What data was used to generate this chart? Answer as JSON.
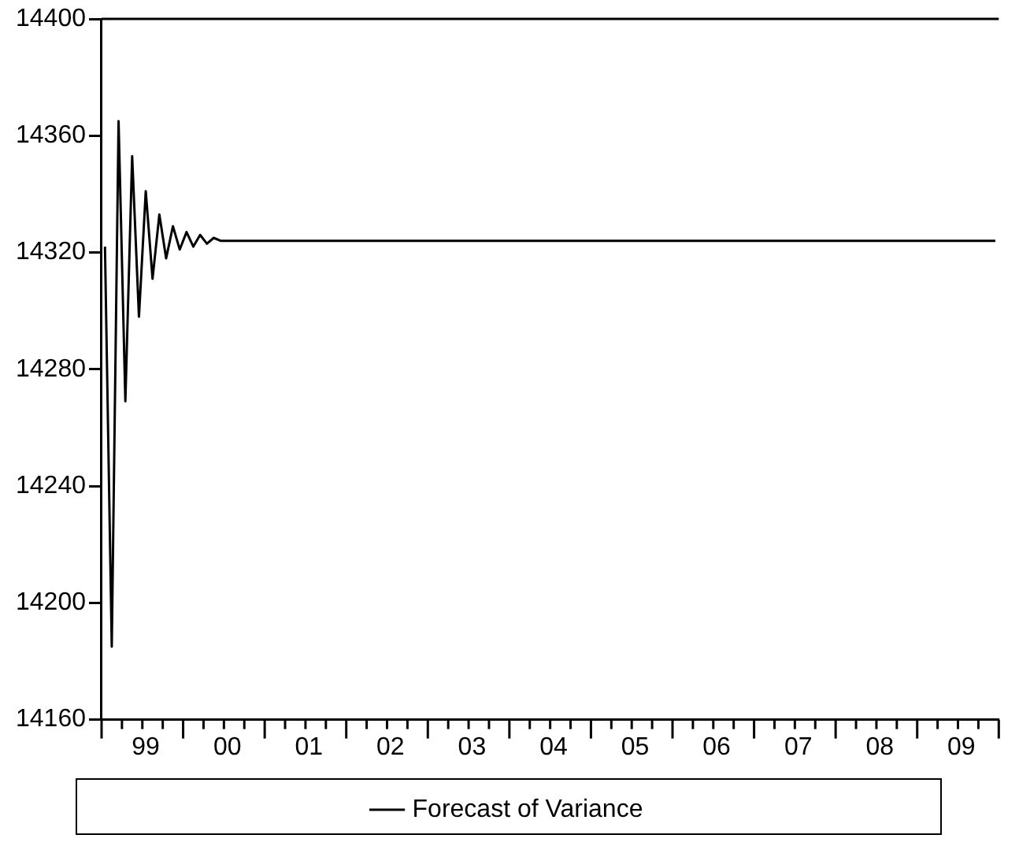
{
  "chart_data": {
    "type": "line",
    "categories": [
      null,
      null,
      null,
      null,
      null,
      null,
      "99",
      null,
      null,
      null,
      null,
      null,
      null,
      null,
      null,
      null,
      null,
      null,
      "00",
      null,
      null,
      null,
      null,
      null,
      null,
      null,
      null,
      null,
      null,
      null,
      "01",
      null,
      null,
      null,
      null,
      null,
      null,
      null,
      null,
      null,
      null,
      null,
      "02",
      null,
      null,
      null,
      null,
      null,
      null,
      null,
      null,
      null,
      null,
      null,
      "03",
      null,
      null,
      null,
      null,
      null,
      null,
      null,
      null,
      null,
      null,
      null,
      "04",
      null,
      null,
      null,
      null,
      null,
      null,
      null,
      null,
      null,
      null,
      null,
      "05",
      null,
      null,
      null,
      null,
      null,
      null,
      null,
      null,
      null,
      null,
      null,
      "06",
      null,
      null,
      null,
      null,
      null,
      null,
      null,
      null,
      null,
      null,
      null,
      "07",
      null,
      null,
      null,
      null,
      null,
      null,
      null,
      null,
      null,
      null,
      null,
      "08",
      null,
      null,
      null,
      null,
      null,
      null,
      null,
      null,
      null,
      null,
      null,
      "09",
      null,
      null,
      null,
      null,
      null
    ],
    "series": [
      {
        "name": "Forecast of Variance",
        "color": "#000000",
        "values": [
          14322,
          14185,
          14365,
          14269,
          14353,
          14298,
          14341,
          14311,
          14333,
          14318,
          14329,
          14321,
          14327,
          14322,
          14326,
          14323,
          14325,
          14324,
          14324,
          14324,
          14324,
          14324,
          14324,
          14324,
          14324,
          14324,
          14324,
          14324,
          14324,
          14324,
          14324,
          14324,
          14324,
          14324,
          14324,
          14324,
          14324,
          14324,
          14324,
          14324,
          14324,
          14324,
          14324,
          14324,
          14324,
          14324,
          14324,
          14324,
          14324,
          14324,
          14324,
          14324,
          14324,
          14324,
          14324,
          14324,
          14324,
          14324,
          14324,
          14324,
          14324,
          14324,
          14324,
          14324,
          14324,
          14324,
          14324,
          14324,
          14324,
          14324,
          14324,
          14324,
          14324,
          14324,
          14324,
          14324,
          14324,
          14324,
          14324,
          14324,
          14324,
          14324,
          14324,
          14324,
          14324,
          14324,
          14324,
          14324,
          14324,
          14324,
          14324,
          14324,
          14324,
          14324,
          14324,
          14324,
          14324,
          14324,
          14324,
          14324,
          14324,
          14324,
          14324,
          14324,
          14324,
          14324,
          14324,
          14324,
          14324,
          14324,
          14324,
          14324,
          14324,
          14324,
          14324,
          14324,
          14324,
          14324,
          14324,
          14324,
          14324,
          14324,
          14324,
          14324,
          14324,
          14324,
          14324,
          14324,
          14324,
          14324,
          14324,
          14324
        ]
      }
    ],
    "ylim": [
      14160,
      14400
    ],
    "yticks": [
      14160,
      14200,
      14240,
      14280,
      14320,
      14360,
      14400
    ],
    "grid": false,
    "legend": "bottom",
    "marker": "none",
    "line_style": "solid"
  }
}
